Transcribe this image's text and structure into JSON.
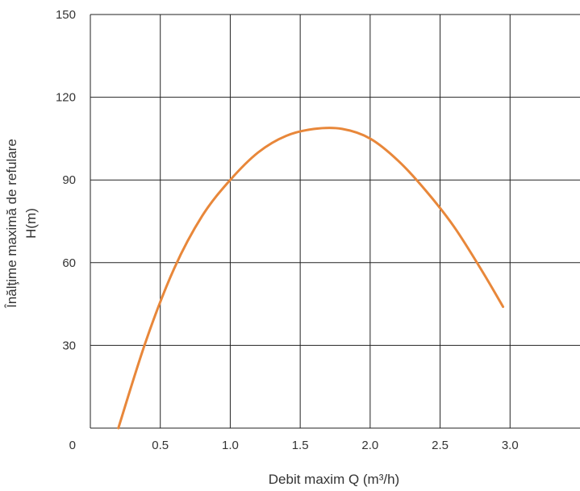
{
  "chart_data": {
    "type": "line",
    "x_label": "Debit maxim Q (m³/h)",
    "y_label_line1": "Înălţime maximă de refulare",
    "y_label_line2": "H(m)",
    "xlim": [
      0,
      3.5
    ],
    "ylim": [
      0,
      150
    ],
    "x_ticks": [
      0.5,
      1.0,
      1.5,
      2.0,
      2.5,
      3.0
    ],
    "x_tick_labels": [
      "0.5",
      "1.0",
      "1.5",
      "2.0",
      "2.5",
      "3.0"
    ],
    "y_ticks": [
      30,
      60,
      90,
      120,
      150
    ],
    "y_tick_labels": [
      "30",
      "60",
      "90",
      "120",
      "150"
    ],
    "origin_label": "0",
    "grid": true,
    "series": [
      {
        "color": "#E8873A",
        "x": [
          0.2,
          0.4,
          0.6,
          0.8,
          1.0,
          1.2,
          1.4,
          1.6,
          1.8,
          2.0,
          2.2,
          2.4,
          2.6,
          2.8,
          2.95
        ],
        "y": [
          0,
          32,
          58,
          77,
          90,
          100,
          106,
          108.5,
          108.5,
          105,
          97,
          86,
          73,
          57,
          44
        ]
      }
    ]
  }
}
